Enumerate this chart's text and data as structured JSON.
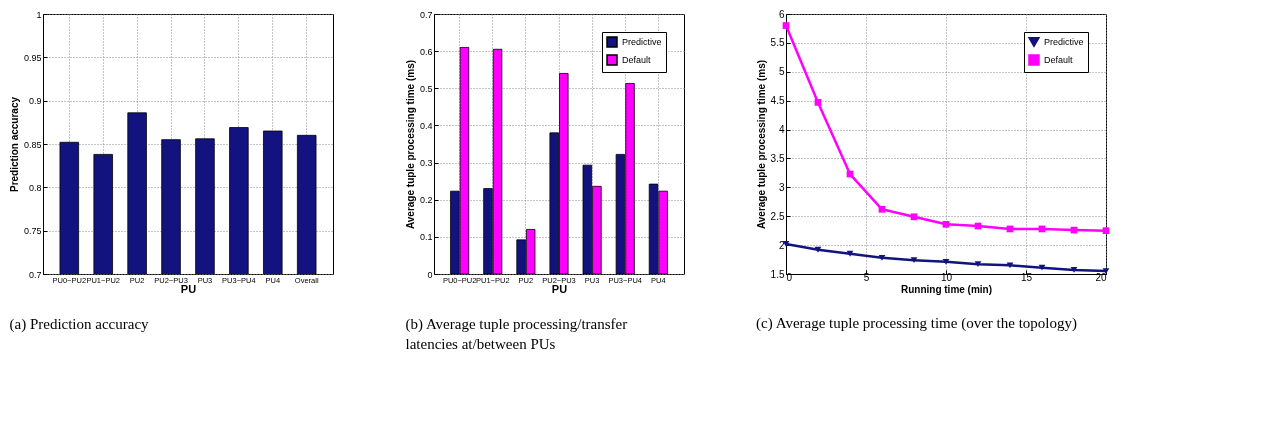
{
  "chart_data": [
    {
      "type": "bar",
      "xlabel": "PU",
      "ylabel": "Prediction accuracy",
      "categories": [
        "PU0−PU2",
        "PU1−PU2",
        "PU2",
        "PU2−PU3",
        "PU3",
        "PU3−PU4",
        "PU4",
        "Overall"
      ],
      "series": [
        {
          "color": "#13137f",
          "values": [
            0.852,
            0.838,
            0.886,
            0.855,
            0.856,
            0.869,
            0.865,
            0.86
          ]
        }
      ],
      "ylim": [
        0.7,
        1
      ],
      "yticks": [
        0.7,
        0.75,
        0.8,
        0.85,
        0.9,
        0.95,
        1
      ],
      "grid": true,
      "legend": false,
      "annotations": [
        "(a) Prediction accuracy"
      ]
    },
    {
      "type": "bar",
      "xlabel": "PU",
      "ylabel": "Average tuple processing time (ms)",
      "categories": [
        "PU0−PU2",
        "PU1−PU2",
        "PU2",
        "PU2−PU3",
        "PU3",
        "PU3−PU4",
        "PU4"
      ],
      "series": [
        {
          "name": "Predictive",
          "color": "#13137f",
          "values": [
            0.223,
            0.23,
            0.092,
            0.38,
            0.293,
            0.322,
            0.242
          ]
        },
        {
          "name": "Default",
          "color": "#ff00ff",
          "values": [
            0.61,
            0.605,
            0.12,
            0.54,
            0.236,
            0.513,
            0.223
          ]
        }
      ],
      "ylim": [
        0,
        0.7
      ],
      "yticks": [
        0,
        0.1,
        0.2,
        0.3,
        0.4,
        0.5,
        0.6,
        0.7
      ],
      "grid": true,
      "legend": "top right",
      "annotations": [
        "(b) Average tuple processing/transfer latencies at/between PUs"
      ]
    },
    {
      "type": "line",
      "xlabel": "Running time (min)",
      "ylabel": "Average tuple processing time (ms)",
      "x": [
        0,
        2,
        4,
        6,
        8,
        10,
        12,
        14,
        16,
        18,
        20
      ],
      "series": [
        {
          "name": "Predictive",
          "color": "#13137f",
          "marker": "triangle",
          "values": [
            2.02,
            1.92,
            1.85,
            1.78,
            1.74,
            1.71,
            1.67,
            1.65,
            1.61,
            1.57,
            1.55
          ]
        },
        {
          "name": "Default",
          "color": "#ff00ff",
          "marker": "square",
          "values": [
            5.8,
            4.47,
            3.23,
            2.62,
            2.49,
            2.36,
            2.33,
            2.28,
            2.28,
            2.26,
            2.25
          ]
        }
      ],
      "xlim": [
        0,
        20
      ],
      "xticks": [
        0,
        5,
        10,
        15,
        20
      ],
      "ylim": [
        1.5,
        6
      ],
      "yticks": [
        1.5,
        2,
        2.5,
        3,
        3.5,
        4,
        4.5,
        5,
        5.5,
        6
      ],
      "grid": true,
      "legend": "top right",
      "line_style": "solid",
      "annotations": [
        "(c) Average tuple processing time (over the topology)"
      ]
    }
  ]
}
